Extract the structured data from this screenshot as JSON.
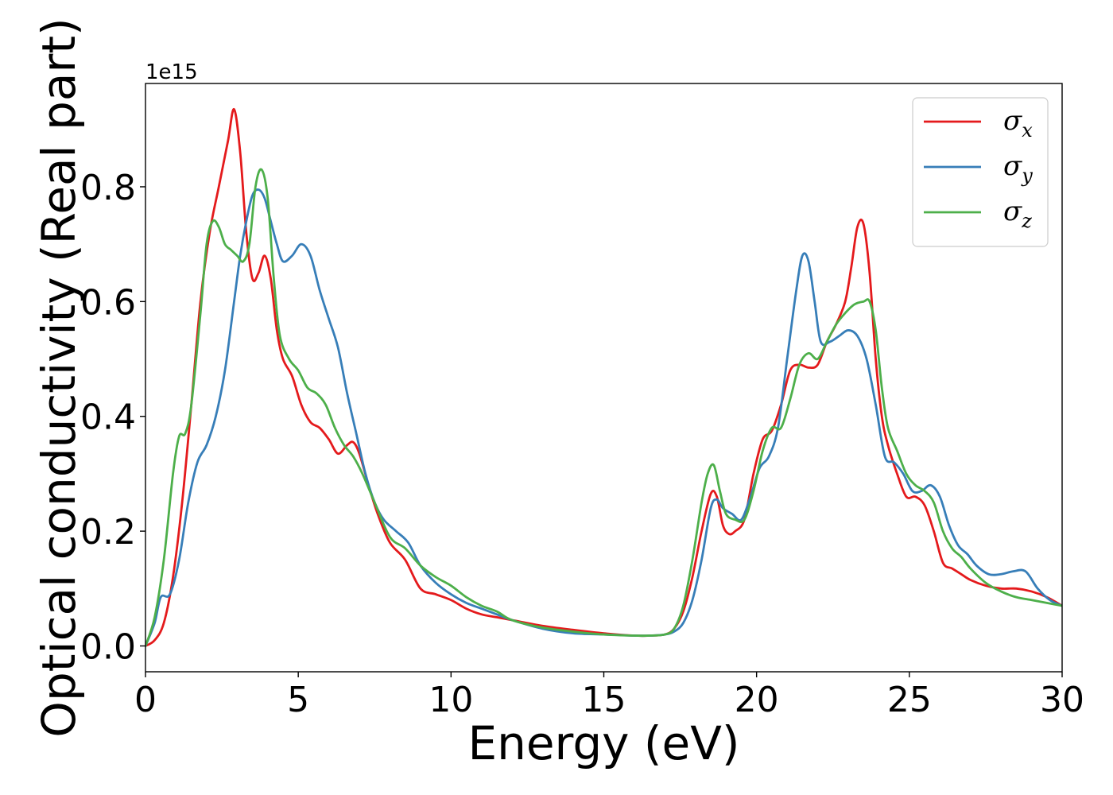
{
  "chart_data": {
    "type": "line",
    "title": "",
    "xlabel": "Energy (eV)",
    "ylabel": "Optical conductivity (Real part)",
    "y_offset_text": "1e15",
    "y_scale": 1000000000000000.0,
    "xlim": [
      0,
      30
    ],
    "ylim": [
      -0.045,
      0.98
    ],
    "xticks": [
      0,
      5,
      10,
      15,
      20,
      25,
      30
    ],
    "xtick_labels": [
      "0",
      "5",
      "10",
      "15",
      "20",
      "25",
      "30"
    ],
    "yticks": [
      0.0,
      0.2,
      0.4,
      0.6,
      0.8
    ],
    "ytick_labels": [
      "0.0",
      "0.2",
      "0.4",
      "0.6",
      "0.8"
    ],
    "grid": false,
    "legend_position": "top-right",
    "series": [
      {
        "name": "σx",
        "legend_symbol": "σ",
        "legend_subscript": "x",
        "color": "#e41a1c",
        "x": [
          0,
          0.3,
          0.6,
          0.9,
          1.2,
          1.5,
          1.8,
          2.1,
          2.4,
          2.7,
          2.9,
          3.1,
          3.3,
          3.5,
          3.7,
          3.9,
          4.1,
          4.3,
          4.5,
          4.8,
          5.1,
          5.4,
          5.7,
          6.0,
          6.3,
          6.6,
          6.8,
          7.0,
          7.3,
          7.6,
          8.0,
          8.5,
          9.0,
          9.5,
          10.0,
          10.5,
          11.0,
          11.5,
          12.0,
          13.0,
          14.0,
          15.0,
          16.0,
          16.5,
          17.0,
          17.3,
          17.6,
          17.9,
          18.2,
          18.5,
          18.7,
          18.9,
          19.1,
          19.3,
          19.6,
          19.9,
          20.2,
          20.5,
          20.8,
          21.1,
          21.4,
          21.7,
          22.0,
          22.3,
          22.6,
          22.9,
          23.1,
          23.3,
          23.5,
          23.7,
          23.9,
          24.1,
          24.3,
          24.6,
          24.9,
          25.2,
          25.5,
          25.8,
          26.1,
          26.4,
          26.7,
          27.0,
          27.5,
          28.0,
          28.5,
          29.0,
          29.5,
          30.0
        ],
        "y": [
          0.0,
          0.01,
          0.04,
          0.12,
          0.25,
          0.42,
          0.6,
          0.72,
          0.8,
          0.88,
          0.935,
          0.86,
          0.72,
          0.64,
          0.65,
          0.68,
          0.64,
          0.55,
          0.5,
          0.47,
          0.42,
          0.39,
          0.38,
          0.36,
          0.335,
          0.35,
          0.355,
          0.335,
          0.28,
          0.23,
          0.18,
          0.15,
          0.1,
          0.09,
          0.08,
          0.065,
          0.055,
          0.05,
          0.045,
          0.035,
          0.028,
          0.022,
          0.018,
          0.018,
          0.02,
          0.03,
          0.06,
          0.12,
          0.2,
          0.265,
          0.26,
          0.21,
          0.195,
          0.2,
          0.22,
          0.3,
          0.36,
          0.375,
          0.42,
          0.48,
          0.49,
          0.485,
          0.49,
          0.53,
          0.56,
          0.6,
          0.66,
          0.73,
          0.735,
          0.65,
          0.5,
          0.4,
          0.35,
          0.3,
          0.26,
          0.26,
          0.245,
          0.2,
          0.145,
          0.135,
          0.125,
          0.115,
          0.105,
          0.1,
          0.1,
          0.095,
          0.085,
          0.07
        ]
      },
      {
        "name": "σy",
        "legend_symbol": "σ",
        "legend_subscript": "y",
        "color": "#377eb8",
        "x": [
          0,
          0.3,
          0.5,
          0.8,
          1.1,
          1.4,
          1.7,
          2.0,
          2.3,
          2.6,
          2.9,
          3.1,
          3.3,
          3.5,
          3.7,
          3.9,
          4.1,
          4.3,
          4.5,
          4.8,
          5.1,
          5.4,
          5.7,
          6.0,
          6.3,
          6.6,
          6.9,
          7.2,
          7.5,
          7.8,
          8.2,
          8.6,
          9.0,
          9.5,
          10.0,
          10.5,
          11.0,
          11.5,
          12.0,
          13.0,
          14.0,
          15.0,
          16.0,
          16.5,
          17.0,
          17.3,
          17.6,
          17.9,
          18.2,
          18.5,
          18.7,
          18.9,
          19.2,
          19.5,
          19.8,
          20.1,
          20.4,
          20.7,
          21.0,
          21.3,
          21.5,
          21.7,
          21.9,
          22.1,
          22.4,
          22.7,
          23.0,
          23.3,
          23.6,
          23.9,
          24.2,
          24.5,
          24.8,
          25.1,
          25.4,
          25.7,
          26.0,
          26.3,
          26.6,
          26.9,
          27.2,
          27.6,
          28.0,
          28.4,
          28.8,
          29.2,
          29.6,
          30.0
        ],
        "y": [
          0.0,
          0.04,
          0.085,
          0.09,
          0.15,
          0.25,
          0.32,
          0.35,
          0.4,
          0.48,
          0.6,
          0.68,
          0.74,
          0.785,
          0.795,
          0.78,
          0.74,
          0.7,
          0.67,
          0.68,
          0.7,
          0.68,
          0.62,
          0.57,
          0.52,
          0.44,
          0.37,
          0.3,
          0.25,
          0.22,
          0.2,
          0.18,
          0.14,
          0.11,
          0.09,
          0.075,
          0.065,
          0.055,
          0.045,
          0.03,
          0.022,
          0.02,
          0.018,
          0.018,
          0.02,
          0.025,
          0.04,
          0.08,
          0.15,
          0.24,
          0.255,
          0.24,
          0.23,
          0.22,
          0.26,
          0.31,
          0.33,
          0.38,
          0.5,
          0.62,
          0.68,
          0.67,
          0.6,
          0.53,
          0.53,
          0.54,
          0.55,
          0.54,
          0.5,
          0.42,
          0.33,
          0.32,
          0.3,
          0.27,
          0.27,
          0.28,
          0.26,
          0.21,
          0.175,
          0.16,
          0.14,
          0.125,
          0.125,
          0.13,
          0.13,
          0.1,
          0.08,
          0.07
        ]
      },
      {
        "name": "σz",
        "legend_symbol": "σ",
        "legend_subscript": "z",
        "color": "#4daf4a",
        "x": [
          0,
          0.3,
          0.6,
          0.9,
          1.1,
          1.3,
          1.5,
          1.8,
          2.0,
          2.2,
          2.4,
          2.6,
          2.8,
          3.0,
          3.2,
          3.4,
          3.6,
          3.8,
          4.0,
          4.2,
          4.4,
          4.7,
          5.0,
          5.3,
          5.6,
          5.9,
          6.2,
          6.5,
          6.8,
          7.1,
          7.5,
          8.0,
          8.5,
          9.0,
          9.5,
          10.0,
          10.5,
          11.0,
          11.5,
          12.0,
          13.0,
          14.0,
          15.0,
          16.0,
          16.5,
          17.0,
          17.3,
          17.6,
          17.9,
          18.2,
          18.4,
          18.6,
          18.8,
          19.0,
          19.3,
          19.6,
          19.9,
          20.2,
          20.5,
          20.8,
          21.1,
          21.4,
          21.7,
          22.0,
          22.3,
          22.6,
          22.9,
          23.2,
          23.5,
          23.7,
          23.9,
          24.1,
          24.3,
          24.6,
          24.9,
          25.2,
          25.5,
          25.8,
          26.1,
          26.4,
          26.7,
          27.0,
          27.5,
          28.0,
          28.5,
          29.0,
          29.5,
          30.0
        ],
        "y": [
          0.0,
          0.05,
          0.15,
          0.3,
          0.365,
          0.37,
          0.42,
          0.58,
          0.7,
          0.74,
          0.73,
          0.7,
          0.69,
          0.68,
          0.67,
          0.7,
          0.8,
          0.83,
          0.78,
          0.64,
          0.54,
          0.5,
          0.48,
          0.45,
          0.44,
          0.42,
          0.38,
          0.35,
          0.33,
          0.3,
          0.25,
          0.19,
          0.17,
          0.14,
          0.12,
          0.105,
          0.085,
          0.07,
          0.06,
          0.045,
          0.032,
          0.025,
          0.02,
          0.018,
          0.018,
          0.02,
          0.03,
          0.07,
          0.15,
          0.25,
          0.3,
          0.315,
          0.27,
          0.23,
          0.22,
          0.22,
          0.27,
          0.34,
          0.38,
          0.38,
          0.43,
          0.49,
          0.51,
          0.5,
          0.53,
          0.56,
          0.58,
          0.595,
          0.6,
          0.6,
          0.55,
          0.45,
          0.38,
          0.34,
          0.3,
          0.28,
          0.27,
          0.25,
          0.2,
          0.17,
          0.155,
          0.135,
          0.11,
          0.095,
          0.085,
          0.08,
          0.075,
          0.07
        ]
      }
    ]
  }
}
